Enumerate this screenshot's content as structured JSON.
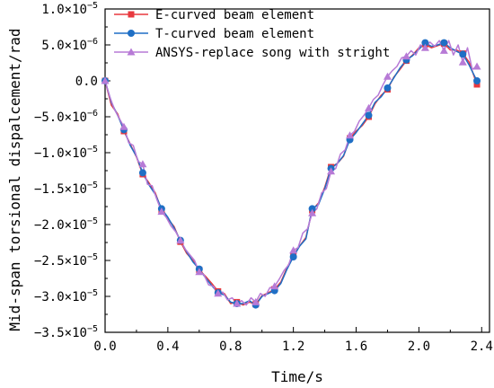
{
  "chart_data": {
    "type": "line",
    "xlabel": "Time/s",
    "ylabel": "Mid-span torsional dispalcement/rad",
    "xlim": [
      0.0,
      2.45
    ],
    "ylim": [
      -3.5e-05,
      1e-05
    ],
    "x_ticks": [
      {
        "value": 0.0,
        "label": "0.0"
      },
      {
        "value": 0.4,
        "label": "0.4"
      },
      {
        "value": 0.8,
        "label": "0.8"
      },
      {
        "value": 1.2,
        "label": "1.2"
      },
      {
        "value": 1.6,
        "label": "1.6"
      },
      {
        "value": 2.0,
        "label": "2.0"
      },
      {
        "value": 2.4,
        "label": "2.4"
      }
    ],
    "y_ticks": [
      {
        "value": 1e-05,
        "mantissa": "1.0",
        "times": "×10",
        "exponent": "−5"
      },
      {
        "value": 5e-06,
        "mantissa": "5.0",
        "times": "×10",
        "exponent": "−6"
      },
      {
        "value": 0.0,
        "mantissa": "0.0",
        "times": "",
        "exponent": ""
      },
      {
        "value": -5e-06,
        "mantissa": "−5.0",
        "times": "×10",
        "exponent": "−6"
      },
      {
        "value": -1e-05,
        "mantissa": "−1.0",
        "times": "×10",
        "exponent": "−5"
      },
      {
        "value": -1.5e-05,
        "mantissa": "−1.5",
        "times": "×10",
        "exponent": "−5"
      },
      {
        "value": -2e-05,
        "mantissa": "−2.0",
        "times": "×10",
        "exponent": "−5"
      },
      {
        "value": -2.5e-05,
        "mantissa": "−2.5",
        "times": "×10",
        "exponent": "−5"
      },
      {
        "value": -3e-05,
        "mantissa": "−3.0",
        "times": "×10",
        "exponent": "−5"
      },
      {
        "value": -3.5e-05,
        "mantissa": "−3.5",
        "times": "×10",
        "exponent": "−5"
      }
    ],
    "legend_position": "top-left",
    "series": [
      {
        "name": "E-curved beam element",
        "color": "#e8393f",
        "marker": "square",
        "x": [
          0.0,
          0.04,
          0.08,
          0.12,
          0.16,
          0.2,
          0.24,
          0.28,
          0.32,
          0.36,
          0.4,
          0.44,
          0.48,
          0.52,
          0.56,
          0.6,
          0.64,
          0.68,
          0.72,
          0.76,
          0.8,
          0.84,
          0.88,
          0.92,
          0.96,
          1.0,
          1.04,
          1.08,
          1.12,
          1.16,
          1.2,
          1.24,
          1.28,
          1.32,
          1.36,
          1.4,
          1.44,
          1.48,
          1.52,
          1.56,
          1.6,
          1.64,
          1.68,
          1.72,
          1.76,
          1.8,
          1.84,
          1.88,
          1.92,
          1.96,
          2.0,
          2.04,
          2.08,
          2.12,
          2.16,
          2.2,
          2.24,
          2.28,
          2.32,
          2.37
        ],
        "y": [
          0.0,
          -3.4e-06,
          -4.6e-06,
          -7e-06,
          -8.8e-06,
          -1.06e-05,
          -1.3e-05,
          -1.42e-05,
          -1.56e-05,
          -1.8e-05,
          -1.92e-05,
          -2.03e-05,
          -2.24e-05,
          -2.4e-05,
          -2.5e-05,
          -2.63e-05,
          -2.72e-05,
          -2.82e-05,
          -2.93e-05,
          -2.96e-05,
          -3.1e-05,
          -3.08e-05,
          -3.12e-05,
          -3.08e-05,
          -3.11e-05,
          -2.99e-05,
          -2.95e-05,
          -2.9e-05,
          -2.8e-05,
          -2.6e-05,
          -2.43e-05,
          -2.3e-05,
          -2.18e-05,
          -1.8e-05,
          -1.7e-05,
          -1.48e-05,
          -1.2e-05,
          -1.15e-05,
          -1.05e-05,
          -8e-06,
          -7e-06,
          -6.2e-06,
          -5e-06,
          -3.2e-06,
          -2e-06,
          -1.2e-06,
          5e-07,
          1.6e-06,
          2.8e-06,
          3.6e-06,
          4.6e-06,
          5.1e-06,
          4.6e-06,
          4.9e-06,
          5.2e-06,
          4.3e-06,
          4.3e-06,
          3.8e-06,
          2.6e-06,
          -5e-07
        ],
        "marker_x": [
          0.0,
          0.12,
          0.24,
          0.36,
          0.48,
          0.6,
          0.72,
          0.84,
          0.96,
          1.08,
          1.2,
          1.32,
          1.44,
          1.56,
          1.68,
          1.8,
          1.92,
          2.04,
          2.16,
          2.28,
          2.37
        ],
        "marker_y": [
          0.0,
          -7e-06,
          -1.3e-05,
          -1.8e-05,
          -2.24e-05,
          -2.63e-05,
          -2.93e-05,
          -3.08e-05,
          -3.11e-05,
          -2.9e-05,
          -2.43e-05,
          -1.8e-05,
          -1.2e-05,
          -8e-06,
          -5e-06,
          -1.2e-06,
          2.8e-06,
          5.1e-06,
          5.2e-06,
          3.8e-06,
          -5e-07
        ]
      },
      {
        "name": "T-curved beam element",
        "color": "#1f6fc5",
        "marker": "circle",
        "x": [
          0.0,
          0.04,
          0.08,
          0.12,
          0.16,
          0.2,
          0.24,
          0.28,
          0.32,
          0.36,
          0.4,
          0.44,
          0.48,
          0.52,
          0.56,
          0.6,
          0.64,
          0.68,
          0.72,
          0.76,
          0.8,
          0.84,
          0.88,
          0.92,
          0.96,
          1.0,
          1.04,
          1.08,
          1.12,
          1.16,
          1.2,
          1.24,
          1.28,
          1.32,
          1.36,
          1.4,
          1.44,
          1.48,
          1.52,
          1.56,
          1.6,
          1.64,
          1.68,
          1.72,
          1.76,
          1.8,
          1.84,
          1.88,
          1.92,
          1.96,
          2.0,
          2.04,
          2.08,
          2.12,
          2.16,
          2.2,
          2.24,
          2.28,
          2.32,
          2.37
        ],
        "y": [
          0.0,
          -3e-06,
          -4.8e-06,
          -6.8e-06,
          -9e-06,
          -1.05e-05,
          -1.28e-05,
          -1.45e-05,
          -1.58e-05,
          -1.78e-05,
          -1.9e-05,
          -2.05e-05,
          -2.22e-05,
          -2.38e-05,
          -2.52e-05,
          -2.62e-05,
          -2.74e-05,
          -2.85e-05,
          -2.95e-05,
          -2.98e-05,
          -3.08e-05,
          -3.1e-05,
          -3.1e-05,
          -3.06e-05,
          -3.12e-05,
          -3e-05,
          -2.96e-05,
          -2.92e-05,
          -2.82e-05,
          -2.62e-05,
          -2.45e-05,
          -2.3e-05,
          -2.2e-05,
          -1.78e-05,
          -1.72e-05,
          -1.5e-05,
          -1.22e-05,
          -1.15e-05,
          -1.04e-05,
          -8.2e-06,
          -7.2e-06,
          -6e-06,
          -4.8e-06,
          -3e-06,
          -2.2e-06,
          -1e-06,
          4e-07,
          1.8e-06,
          2.9e-06,
          3.5e-06,
          4.4e-06,
          5.3e-06,
          4.8e-06,
          5e-06,
          5.3e-06,
          4.6e-06,
          4.1e-06,
          3.7e-06,
          2.2e-06,
          0.0
        ],
        "marker_x": [
          0.0,
          0.12,
          0.24,
          0.36,
          0.48,
          0.6,
          0.72,
          0.84,
          0.96,
          1.08,
          1.2,
          1.32,
          1.44,
          1.56,
          1.68,
          1.8,
          1.92,
          2.04,
          2.16,
          2.28,
          2.37
        ],
        "marker_y": [
          0.0,
          -6.8e-06,
          -1.28e-05,
          -1.78e-05,
          -2.22e-05,
          -2.62e-05,
          -2.95e-05,
          -3.1e-05,
          -3.12e-05,
          -2.92e-05,
          -2.45e-05,
          -1.78e-05,
          -1.22e-05,
          -8.2e-06,
          -4.8e-06,
          -1e-06,
          2.9e-06,
          5.3e-06,
          5.3e-06,
          3.7e-06,
          0.0
        ]
      },
      {
        "name": "ANSYS-replace song with stright",
        "color": "#b77ad6",
        "marker": "triangle",
        "x": [
          0.0,
          0.03,
          0.06,
          0.09,
          0.12,
          0.15,
          0.18,
          0.21,
          0.24,
          0.27,
          0.3,
          0.33,
          0.36,
          0.39,
          0.42,
          0.45,
          0.48,
          0.51,
          0.54,
          0.57,
          0.6,
          0.63,
          0.66,
          0.69,
          0.72,
          0.75,
          0.78,
          0.81,
          0.84,
          0.87,
          0.9,
          0.93,
          0.96,
          0.99,
          1.02,
          1.05,
          1.08,
          1.11,
          1.14,
          1.17,
          1.2,
          1.23,
          1.26,
          1.29,
          1.32,
          1.35,
          1.38,
          1.41,
          1.44,
          1.47,
          1.5,
          1.53,
          1.56,
          1.59,
          1.62,
          1.65,
          1.68,
          1.71,
          1.74,
          1.77,
          1.8,
          1.83,
          1.86,
          1.89,
          1.92,
          1.95,
          1.98,
          2.01,
          2.04,
          2.07,
          2.1,
          2.13,
          2.16,
          2.19,
          2.22,
          2.25,
          2.28,
          2.31,
          2.34,
          2.37
        ],
        "y": [
          0.0,
          -2.2e-06,
          -4e-06,
          -5.2e-06,
          -6.4e-06,
          -8.6e-06,
          -9e-06,
          -1.12e-05,
          -1.16e-05,
          -1.44e-05,
          -1.46e-05,
          -1.65e-05,
          -1.82e-05,
          -1.9e-05,
          -2.02e-05,
          -2.1e-05,
          -2.22e-05,
          -2.34e-05,
          -2.42e-05,
          -2.5e-05,
          -2.66e-05,
          -2.7e-05,
          -2.84e-05,
          -2.86e-05,
          -2.96e-05,
          -2.94e-05,
          -3.05e-05,
          -3.02e-05,
          -3.1e-05,
          -3.06e-05,
          -3.12e-05,
          -3.02e-05,
          -3.08e-05,
          -2.96e-05,
          -3e-05,
          -2.88e-05,
          -2.86e-05,
          -2.76e-05,
          -2.64e-05,
          -2.56e-05,
          -2.36e-05,
          -2.32e-05,
          -2.12e-05,
          -2.06e-05,
          -1.84e-05,
          -1.78e-05,
          -1.56e-05,
          -1.5e-05,
          -1.26e-05,
          -1.22e-05,
          -1.02e-05,
          -9.6e-06,
          -7.6e-06,
          -7e-06,
          -5.6e-06,
          -4.8e-06,
          -3.8e-06,
          -2.6e-06,
          -2e-06,
          -6e-07,
          6e-07,
          1.4e-06,
          2e-06,
          3.2e-06,
          3.4e-06,
          4.2e-06,
          3.6e-06,
          5e-06,
          4.6e-06,
          5.4e-06,
          4.8e-06,
          5.6e-06,
          4.2e-06,
          5.6e-06,
          3.6e-06,
          5e-06,
          2.6e-06,
          4.6e-06,
          1.6e-06,
          2e-06
        ],
        "marker_x": [
          0.0,
          0.12,
          0.24,
          0.36,
          0.48,
          0.6,
          0.72,
          0.84,
          0.96,
          1.08,
          1.2,
          1.32,
          1.44,
          1.56,
          1.68,
          1.8,
          1.92,
          2.04,
          2.16,
          2.28,
          2.37
        ],
        "marker_y": [
          0.0,
          -6.4e-06,
          -1.16e-05,
          -1.82e-05,
          -2.22e-05,
          -2.66e-05,
          -2.96e-05,
          -3.1e-05,
          -3.08e-05,
          -2.86e-05,
          -2.36e-05,
          -1.84e-05,
          -1.26e-05,
          -7.6e-06,
          -3.8e-06,
          6e-07,
          3.4e-06,
          4.6e-06,
          4.2e-06,
          2.6e-06,
          2e-06
        ]
      }
    ]
  }
}
